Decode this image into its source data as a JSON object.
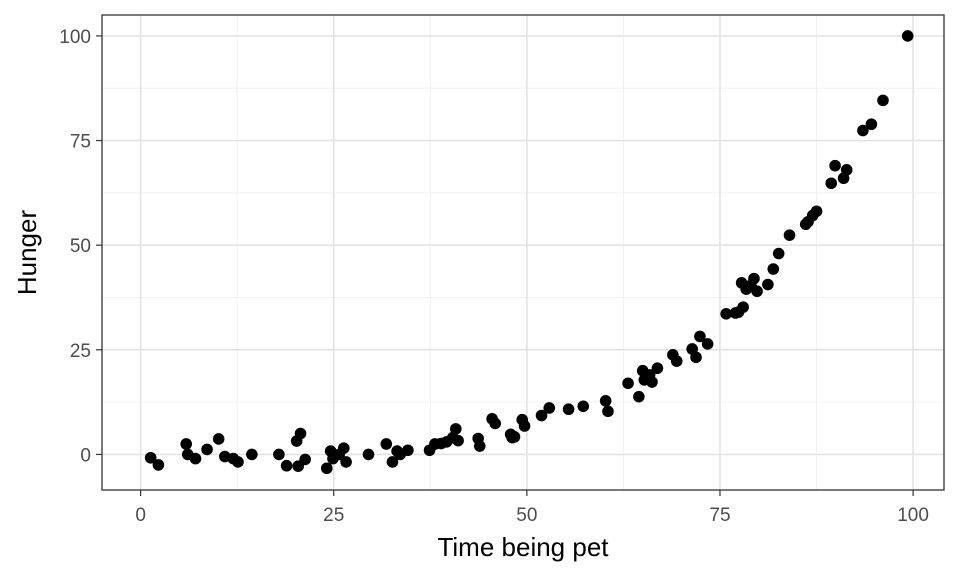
{
  "chart_data": {
    "type": "scatter",
    "title": "",
    "xlabel": "Time being pet",
    "ylabel": "Hunger",
    "xlim": [
      -5,
      104
    ],
    "ylim": [
      -8.5,
      105
    ],
    "xticks": [
      0,
      25,
      50,
      75,
      100
    ],
    "yticks": [
      0,
      25,
      50,
      75,
      100
    ],
    "xtick_labels": [
      "0",
      "25",
      "50",
      "75",
      "100"
    ],
    "ytick_labels": [
      "0",
      "25",
      "50",
      "75",
      "100"
    ],
    "grid": true,
    "legend": "none",
    "point_color": "#000000",
    "points": [
      [
        1.3,
        -0.8
      ],
      [
        2.3,
        -2.5
      ],
      [
        5.9,
        2.5
      ],
      [
        6.1,
        0
      ],
      [
        7.1,
        -1
      ],
      [
        8.6,
        1.2
      ],
      [
        10.1,
        3.7
      ],
      [
        10.9,
        -0.5
      ],
      [
        12,
        -1
      ],
      [
        12.6,
        -1.8
      ],
      [
        14.4,
        0
      ],
      [
        17.9,
        0
      ],
      [
        18.9,
        -2.7
      ],
      [
        20.2,
        3.2
      ],
      [
        20.4,
        -2.8
      ],
      [
        20.7,
        5
      ],
      [
        21.3,
        -1.2
      ],
      [
        24.1,
        -3.3
      ],
      [
        24.6,
        0.8
      ],
      [
        24.9,
        -1
      ],
      [
        25.7,
        0
      ],
      [
        26.3,
        1.5
      ],
      [
        26.6,
        -1.8
      ],
      [
        29.5,
        0
      ],
      [
        31.8,
        2.5
      ],
      [
        32.6,
        -1.8
      ],
      [
        33.2,
        0.8
      ],
      [
        33.6,
        0
      ],
      [
        34.6,
        1
      ],
      [
        37.4,
        1
      ],
      [
        38.1,
        2.5
      ],
      [
        38.9,
        2.6
      ],
      [
        39.6,
        3
      ],
      [
        40.4,
        4
      ],
      [
        40.8,
        6.1
      ],
      [
        41.1,
        3.3
      ],
      [
        43.7,
        3.8
      ],
      [
        43.9,
        2
      ],
      [
        45.5,
        8.5
      ],
      [
        45.9,
        7.4
      ],
      [
        47.9,
        4.8
      ],
      [
        48.1,
        4
      ],
      [
        48.4,
        4.2
      ],
      [
        49.4,
        8.3
      ],
      [
        49.7,
        6.8
      ],
      [
        51.9,
        9.3
      ],
      [
        52.9,
        11.1
      ],
      [
        55.4,
        10.8
      ],
      [
        57.3,
        11.5
      ],
      [
        60.2,
        12.8
      ],
      [
        60.5,
        10.3
      ],
      [
        63.1,
        17
      ],
      [
        64.5,
        13.8
      ],
      [
        65,
        20
      ],
      [
        65.2,
        17.8
      ],
      [
        65.9,
        19
      ],
      [
        66.2,
        17.3
      ],
      [
        66.9,
        20.6
      ],
      [
        68.9,
        23.8
      ],
      [
        69.4,
        22.3
      ],
      [
        71.4,
        25.2
      ],
      [
        71.9,
        23.2
      ],
      [
        72.4,
        28.2
      ],
      [
        73.4,
        26.4
      ],
      [
        75.8,
        33.6
      ],
      [
        77,
        33.8
      ],
      [
        77.4,
        34
      ],
      [
        77.8,
        41
      ],
      [
        78,
        35.2
      ],
      [
        78.4,
        39.5
      ],
      [
        79,
        40.4
      ],
      [
        79.4,
        42
      ],
      [
        79.8,
        39
      ],
      [
        81.2,
        40.6
      ],
      [
        81.9,
        44.3
      ],
      [
        82.6,
        48
      ],
      [
        84,
        52.4
      ],
      [
        86.1,
        55
      ],
      [
        86.4,
        55.6
      ],
      [
        87,
        57.1
      ],
      [
        87.5,
        58.1
      ],
      [
        89.4,
        64.8
      ],
      [
        89.9,
        69
      ],
      [
        91,
        66
      ],
      [
        91.4,
        68
      ],
      [
        93.5,
        77.4
      ],
      [
        94.6,
        78.9
      ],
      [
        96.1,
        84.6
      ],
      [
        99.3,
        100
      ]
    ]
  }
}
